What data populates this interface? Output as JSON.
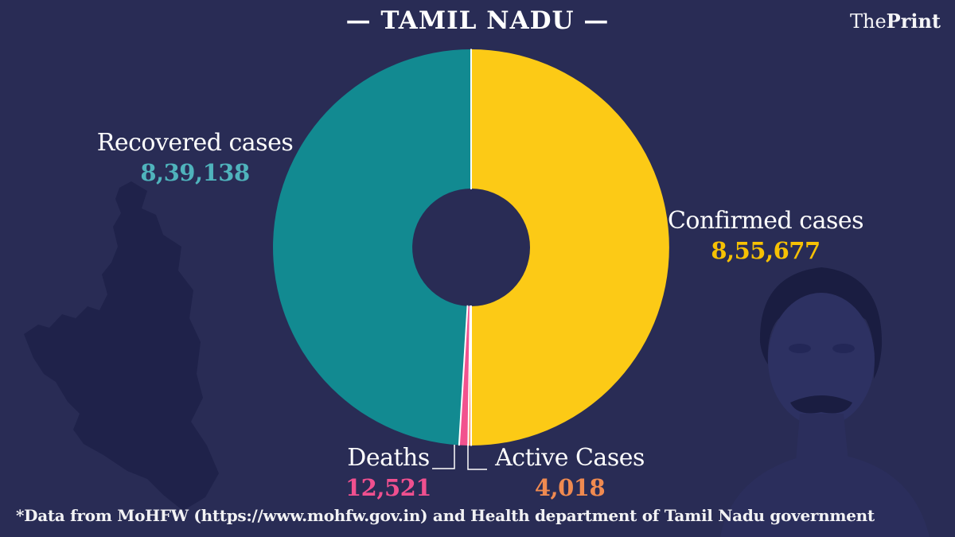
{
  "header": {
    "title": "— TAMIL NADU —"
  },
  "brand": {
    "the": "The",
    "print": "Print"
  },
  "chart_data": {
    "type": "pie",
    "subtype": "donut",
    "title": "TAMIL NADU",
    "total": 1711354,
    "start_angle_deg": 0,
    "direction": "clockwise",
    "slice_gap_color": "#ffffff",
    "legend_position": "around-chart",
    "series": [
      {
        "name": "Confirmed cases",
        "value": 855677,
        "display": "8,55,677",
        "color": "#FCCA16",
        "label_color": "#F6C104"
      },
      {
        "name": "Active Cases",
        "value": 4018,
        "display": "4,018",
        "color": "#F08A50",
        "label_color": "#F08A50"
      },
      {
        "name": "Deaths",
        "value": 12521,
        "display": "12,521",
        "color": "#F2528E",
        "label_color": "#F0508F"
      },
      {
        "name": "Recovered cases",
        "value": 839138,
        "display": "8,39,138",
        "color": "#128A91",
        "label_color": "#4FB3BC"
      }
    ]
  },
  "footer": {
    "note": "*Data from MoHFW (https://www.mohfw.gov.in) and Health department of Tamil Nadu government"
  },
  "colors": {
    "background": "#292C55",
    "map_silhouette": "#1F224A",
    "portrait_hair": "#1A1D41",
    "portrait_face": "#2D3162",
    "text": "#FFFFFF"
  }
}
